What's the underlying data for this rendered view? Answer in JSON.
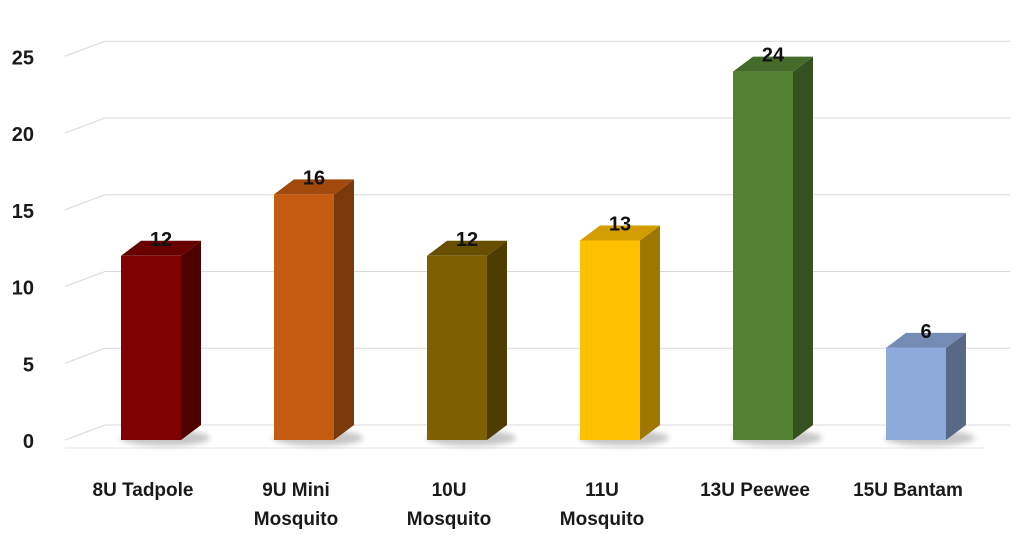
{
  "chart_data": {
    "type": "bar",
    "style": "3d-column",
    "categories": [
      [
        "8U Tadpole"
      ],
      [
        "9U Mini",
        "Mosquito"
      ],
      [
        "10U",
        "Mosquito"
      ],
      [
        "11U",
        "Mosquito"
      ],
      [
        "13U Peewee"
      ],
      [
        "15U Bantam"
      ]
    ],
    "values": [
      12,
      16,
      12,
      13,
      24,
      6
    ],
    "data_labels": [
      "12",
      "16",
      "12",
      "13",
      "24",
      "6"
    ],
    "colors": [
      "#7f0000",
      "#c55a11",
      "#7f6000",
      "#ffc000",
      "#548235",
      "#8eaadb"
    ],
    "yticks": [
      "0",
      "5",
      "10",
      "15",
      "20",
      "25"
    ],
    "ylim": [
      0,
      25
    ],
    "grid": true,
    "legend": "none"
  }
}
